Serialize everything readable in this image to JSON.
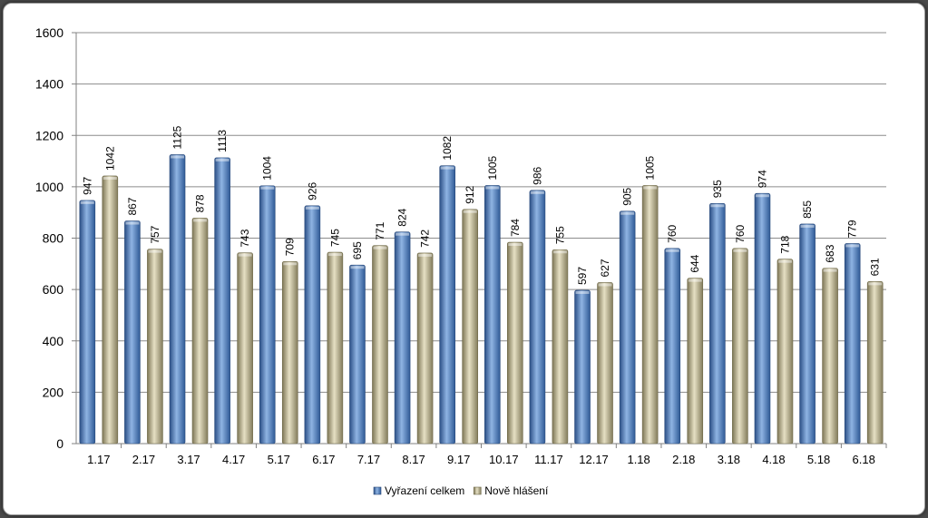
{
  "chart_data": {
    "type": "bar",
    "categories": [
      "1.17",
      "2.17",
      "3.17",
      "4.17",
      "5.17",
      "6.17",
      "7.17",
      "8.17",
      "9.17",
      "10.17",
      "11.17",
      "12.17",
      "1.18",
      "2.18",
      "3.18",
      "4.18",
      "5.18",
      "6.18"
    ],
    "series": [
      {
        "name": "Vyřazení celkem",
        "color": "#4f81bd",
        "values": [
          947,
          867,
          1125,
          1113,
          1004,
          926,
          695,
          824,
          1082,
          1005,
          986,
          597,
          905,
          760,
          935,
          974,
          855,
          779
        ]
      },
      {
        "name": "Nově hlášení",
        "color": "#c4bd97",
        "values": [
          1042,
          757,
          878,
          743,
          709,
          745,
          771,
          742,
          912,
          784,
          755,
          627,
          1005,
          644,
          760,
          718,
          683,
          631
        ]
      }
    ],
    "yticks": [
      "0",
      "200",
      "400",
      "600",
      "800",
      "1000",
      "1200",
      "1400",
      "1600"
    ],
    "ylim": [
      0,
      1600
    ],
    "grid": true,
    "legend_position": "bottom"
  }
}
